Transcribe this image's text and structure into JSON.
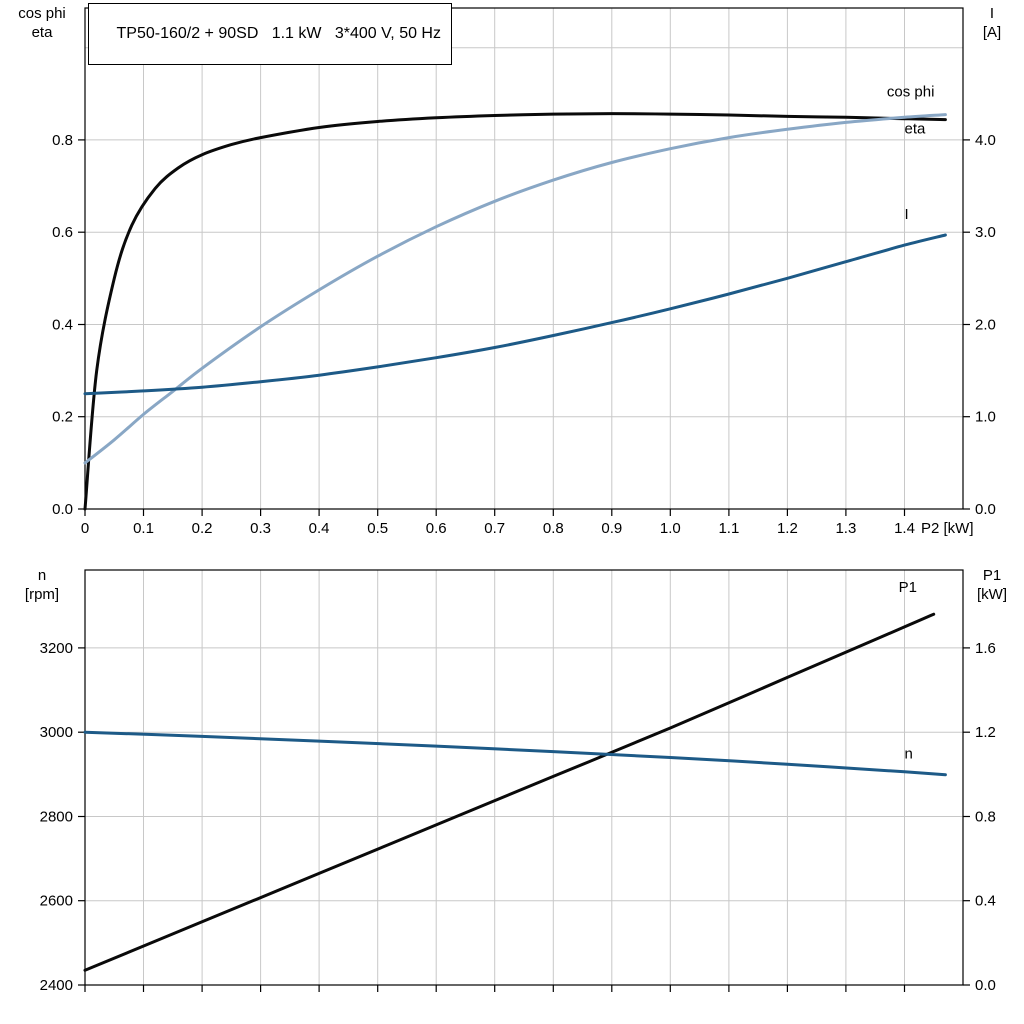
{
  "title": "TP50-160/2 + 90SD   1.1 kW   3*400 V, 50 Hz",
  "colors": {
    "black": "#0a0a0a",
    "dark_blue": "#1d5a87",
    "light_blue": "#89a7c5",
    "grid": "#c8c8c8",
    "axis": "#000000",
    "text": "#000000"
  },
  "chart_data": [
    {
      "type": "line",
      "title": "TP50-160/2 + 90SD   1.1 kW   3*400 V, 50 Hz",
      "x_axis": {
        "label": "P2 [kW]",
        "range": [
          0,
          1.5
        ],
        "ticks": [
          0,
          0.1,
          0.2,
          0.3,
          0.4,
          0.5,
          0.6,
          0.7,
          0.8,
          0.9,
          1.0,
          1.1,
          1.2,
          1.3,
          1.4
        ],
        "tick_labels": [
          "0",
          "0.1",
          "0.2",
          "0.3",
          "0.4",
          "0.5",
          "0.6",
          "0.7",
          "0.8",
          "0.9",
          "1.0",
          "1.1",
          "1.2",
          "1.3",
          "1.4"
        ],
        "show_tick_labels": true
      },
      "left_axis": {
        "label_lines": [
          "cos phi",
          "eta"
        ],
        "range": [
          0,
          1.086
        ],
        "ticks": [
          0.0,
          0.2,
          0.4,
          0.6,
          0.8
        ],
        "tick_labels": [
          "0.0",
          "0.2",
          "0.4",
          "0.6",
          "0.8"
        ],
        "grid_ticks": [
          0.2,
          0.4,
          0.6,
          0.8,
          1.0
        ]
      },
      "right_axis": {
        "label_lines": [
          "I",
          "[A]"
        ],
        "range": [
          0,
          5.43
        ],
        "ticks": [
          0.0,
          1.0,
          2.0,
          3.0,
          4.0
        ],
        "tick_labels": [
          "0.0",
          "1.0",
          "2.0",
          "3.0",
          "4.0"
        ]
      },
      "grid": true,
      "legend_position": "curve-end-labels",
      "series": [
        {
          "name": "eta",
          "label": "eta",
          "axis": "left",
          "color_key": "black",
          "label_anchor": [
            1.4,
            0.825
          ],
          "x": [
            0,
            0.02,
            0.05,
            0.08,
            0.12,
            0.16,
            0.2,
            0.25,
            0.3,
            0.4,
            0.5,
            0.6,
            0.7,
            0.8,
            0.9,
            1.0,
            1.1,
            1.2,
            1.3,
            1.4,
            1.47
          ],
          "y": [
            0,
            0.3,
            0.5,
            0.615,
            0.695,
            0.74,
            0.768,
            0.79,
            0.805,
            0.827,
            0.84,
            0.848,
            0.853,
            0.856,
            0.857,
            0.856,
            0.854,
            0.851,
            0.849,
            0.846,
            0.844
          ]
        },
        {
          "name": "cos_phi",
          "label": "cos phi",
          "axis": "left",
          "color_key": "light_blue",
          "label_anchor": [
            1.37,
            0.905
          ],
          "x": [
            0,
            0.05,
            0.1,
            0.15,
            0.2,
            0.3,
            0.4,
            0.5,
            0.6,
            0.7,
            0.8,
            0.9,
            1.0,
            1.1,
            1.2,
            1.3,
            1.4,
            1.47
          ],
          "y": [
            0.1,
            0.15,
            0.205,
            0.255,
            0.305,
            0.395,
            0.475,
            0.548,
            0.612,
            0.667,
            0.713,
            0.751,
            0.781,
            0.805,
            0.823,
            0.838,
            0.849,
            0.855
          ]
        },
        {
          "name": "current",
          "label": "I",
          "axis": "right",
          "color_key": "dark_blue",
          "label_anchor": [
            1.4,
            3.2
          ],
          "x": [
            0,
            0.1,
            0.2,
            0.3,
            0.4,
            0.5,
            0.6,
            0.7,
            0.8,
            0.9,
            1.0,
            1.1,
            1.2,
            1.3,
            1.4,
            1.47
          ],
          "y": [
            1.25,
            1.28,
            1.32,
            1.38,
            1.45,
            1.54,
            1.64,
            1.75,
            1.88,
            2.02,
            2.17,
            2.33,
            2.5,
            2.68,
            2.86,
            2.97
          ]
        }
      ]
    },
    {
      "type": "line",
      "title": "",
      "x_axis": {
        "label": "",
        "range": [
          0,
          1.5
        ],
        "ticks": [
          0,
          0.1,
          0.2,
          0.3,
          0.4,
          0.5,
          0.6,
          0.7,
          0.8,
          0.9,
          1.0,
          1.1,
          1.2,
          1.3,
          1.4
        ],
        "tick_labels": [],
        "show_tick_labels": false
      },
      "left_axis": {
        "label_lines": [
          "n",
          "[rpm]"
        ],
        "range": [
          2400,
          3385
        ],
        "ticks": [
          2400,
          2600,
          2800,
          3000,
          3200
        ],
        "tick_labels": [
          "2400",
          "2600",
          "2800",
          "3000",
          "3200"
        ],
        "grid_ticks": [
          2600,
          2800,
          3000,
          3200
        ]
      },
      "right_axis": {
        "label_lines": [
          "P1",
          "[kW]"
        ],
        "range": [
          0,
          1.97
        ],
        "ticks": [
          0.0,
          0.4,
          0.8,
          1.2,
          1.6
        ],
        "tick_labels": [
          "0.0",
          "0.4",
          "0.8",
          "1.2",
          "1.6"
        ]
      },
      "grid": true,
      "legend_position": "curve-end-labels",
      "series": [
        {
          "name": "P1",
          "label": "P1",
          "axis": "right",
          "color_key": "black",
          "label_anchor": [
            1.39,
            1.89
          ],
          "x": [
            0,
            0.2,
            0.4,
            0.6,
            0.8,
            1.0,
            1.2,
            1.4,
            1.45
          ],
          "y": [
            0.07,
            0.3,
            0.53,
            0.76,
            0.99,
            1.22,
            1.46,
            1.7,
            1.76
          ]
        },
        {
          "name": "n",
          "label": "n",
          "axis": "left",
          "color_key": "dark_blue",
          "label_anchor": [
            1.4,
            2950
          ],
          "x": [
            0,
            0.2,
            0.4,
            0.6,
            0.8,
            1.0,
            1.2,
            1.4,
            1.47
          ],
          "y": [
            3000,
            2990,
            2979,
            2967,
            2954,
            2940,
            2924,
            2906,
            2899
          ]
        }
      ]
    }
  ]
}
